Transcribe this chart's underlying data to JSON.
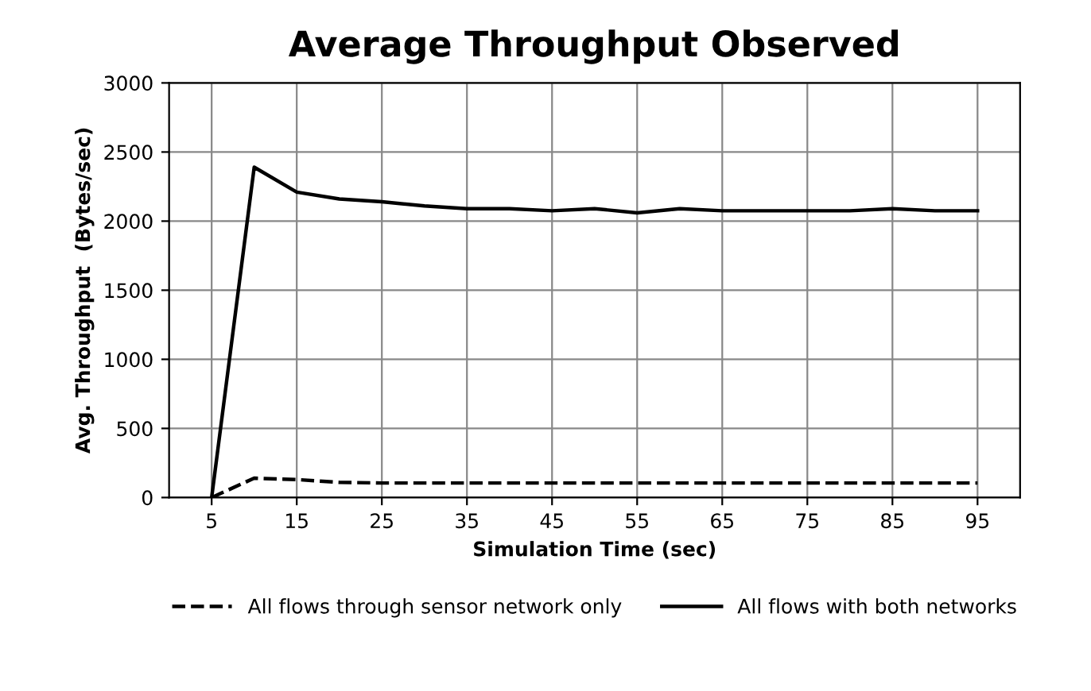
{
  "chart_data": {
    "type": "line",
    "title": "Average Throughput Observed",
    "xlabel": "Simulation Time (sec)",
    "ylabel": "Avg. Throughput  (Bytes/sec)",
    "categories": [
      "5",
      null,
      "15",
      null,
      "25",
      null,
      "35",
      null,
      "45",
      null,
      "55",
      null,
      "65",
      null,
      "75",
      null,
      "85",
      null,
      "95"
    ],
    "series": [
      {
        "name": "All flows through sensor network only",
        "color": "#000000",
        "line_style": "dashed",
        "values": [
          0,
          140,
          130,
          110,
          105,
          105,
          105,
          105,
          105,
          105,
          105,
          105,
          105,
          105,
          105,
          105,
          105,
          105,
          105
        ]
      },
      {
        "name": "All flows with both networks",
        "color": "#000000",
        "line_style": "solid",
        "values": [
          0,
          2390,
          2210,
          2160,
          2140,
          2110,
          2090,
          2090,
          2075,
          2090,
          2060,
          2090,
          2075,
          2075,
          2075,
          2075,
          2090,
          2075,
          2075
        ]
      }
    ],
    "ylim": [
      0,
      3000
    ],
    "yticks": [
      0,
      500,
      1000,
      1500,
      2000,
      2500,
      3000
    ],
    "grid": true,
    "legend": "bottom",
    "marker": "none"
  }
}
